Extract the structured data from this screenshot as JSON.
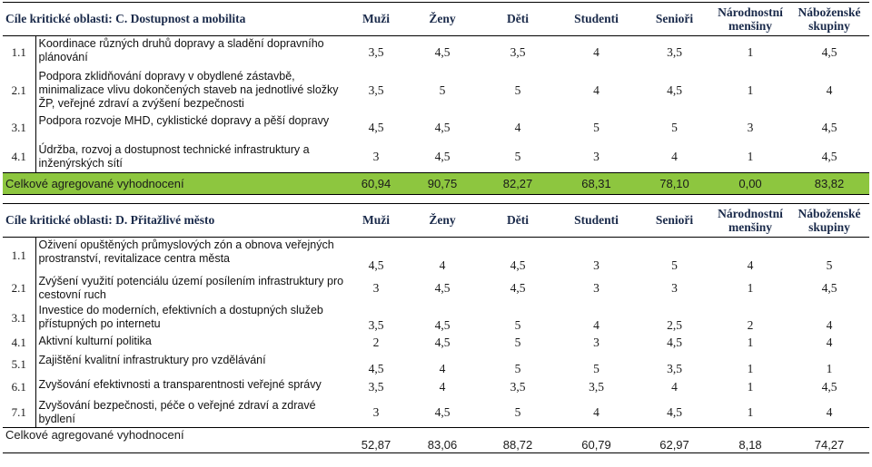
{
  "section_c": {
    "title": "Cíle kritické oblasti: C. Dostupnost a mobilita",
    "columns": [
      "Muži",
      "Ženy",
      "Děti",
      "Studenti",
      "Senioři",
      "Národnostní menšiny",
      "Náboženské skupiny"
    ],
    "rows": [
      {
        "id": "1.1",
        "text": "Koordinace různých druhů dopravy a sladění dopravního plánování",
        "values": [
          "3,5",
          "4,5",
          "3,5",
          "4",
          "3,5",
          "1",
          "4,5"
        ]
      },
      {
        "id": "2.1",
        "text": "Podpora zklidňování dopravy v obydlené zástavbě, minimalizace vlivu dokončených staveb na jednotlivé složky ŽP, veřejné zdraví a zvýšení bezpečnosti",
        "values": [
          "3,5",
          "5",
          "5",
          "4",
          "4,5",
          "1",
          "4"
        ]
      },
      {
        "id": "3.1",
        "text": "Podpora rozvoje MHD, cyklistické dopravy a pěší dopravy",
        "values": [
          "4,5",
          "4,5",
          "4",
          "5",
          "5",
          "3",
          "4,5"
        ]
      },
      {
        "id": "4.1",
        "text": "Údržba, rozvoj a dostupnost technické infrastruktury a inženýrských sítí",
        "values": [
          "3",
          "4,5",
          "5",
          "3",
          "4",
          "1",
          "4,5"
        ]
      }
    ],
    "total": {
      "label": "Celkové agregované vyhodnocení",
      "values": [
        "60,94",
        "90,75",
        "82,27",
        "68,31",
        "78,10",
        "0,00",
        "83,82"
      ]
    }
  },
  "section_d": {
    "title": "Cíle kritické oblasti: D. Přitažlivé město",
    "columns": [
      "Muži",
      "Ženy",
      "Děti",
      "Studenti",
      "Senioři",
      "Národnostní menšiny",
      "Náboženské skupiny"
    ],
    "rows": [
      {
        "id": "1.1",
        "text": "Oživení opuštěných průmyslových zón a obnova veřejných prostranství, revitalizace centra města",
        "values": [
          "4,5",
          "4",
          "4,5",
          "3",
          "5",
          "4",
          "5"
        ]
      },
      {
        "id": "2.1",
        "text": "Zvýšení využití potenciálu území posílením infrastruktury pro cestovní ruch",
        "values": [
          "3",
          "4,5",
          "4,5",
          "3",
          "3",
          "1",
          "4,5"
        ]
      },
      {
        "id": "3.1",
        "text": "Investice do moderních, efektivních a dostupných služeb přístupných po internetu",
        "values": [
          "3,5",
          "4,5",
          "5",
          "4",
          "2,5",
          "2",
          "4"
        ]
      },
      {
        "id": "4.1",
        "text": "Aktivní kulturní politika",
        "values": [
          "2",
          "4,5",
          "5",
          "3",
          "4,5",
          "1",
          "4"
        ]
      },
      {
        "id": "5.1",
        "text": "Zajištění kvalitní infrastruktury pro vzdělávání",
        "values": [
          "4,5",
          "4",
          "5",
          "5",
          "3,5",
          "1",
          "1"
        ]
      },
      {
        "id": "6.1",
        "text": "Zvyšování efektivnosti a transparentnosti veřejné správy",
        "values": [
          "3,5",
          "4",
          "3,5",
          "3,5",
          "4",
          "1",
          "4,5"
        ]
      },
      {
        "id": "7.1",
        "text": "Zvyšování bezpečnosti, péče o veřejné zdraví a zdravé bydlení",
        "values": [
          "3",
          "4,5",
          "5",
          "4",
          "4,5",
          "1",
          "4"
        ]
      }
    ],
    "total": {
      "label": "Celkové agregované vyhodnocení",
      "values": [
        "52,87",
        "83,06",
        "88,72",
        "60,79",
        "62,97",
        "8,18",
        "74,27"
      ]
    }
  }
}
